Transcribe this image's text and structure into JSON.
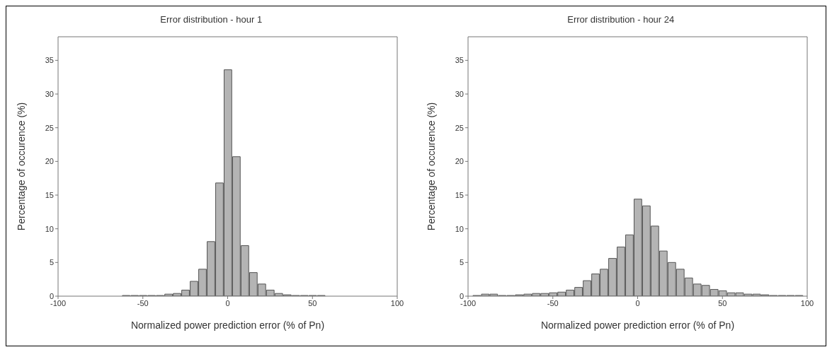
{
  "chart_data": [
    {
      "type": "histogram",
      "title": "Error distribution - hour 1",
      "xlabel": "Normalized power prediction error (% of Pn)",
      "ylabel": "Percentage of occurence (%)",
      "color": "#b4b4b4",
      "bins": [
        -97.5,
        -92.5,
        -87.5,
        -82.5,
        -77.5,
        -72.5,
        -67.5,
        -62.5,
        -57.5,
        -52.5,
        -47.5,
        -42.5,
        -37.5,
        -32.5,
        -27.5,
        -22.5,
        -17.5,
        -12.5,
        -7.5,
        -2.5,
        2.5,
        7.5,
        12.5,
        17.5,
        22.5,
        27.5,
        32.5,
        37.5,
        42.5,
        47.5,
        52.5,
        57.5,
        62.5,
        67.5,
        72.5,
        77.5,
        82.5,
        87.5,
        92.5,
        97.5
      ],
      "values": [
        0,
        0,
        0,
        0,
        0,
        0,
        0,
        0.1,
        0.1,
        0.1,
        0.1,
        0.1,
        0.3,
        0.4,
        0.9,
        2.2,
        4.0,
        8.1,
        16.8,
        33.6,
        20.7,
        7.5,
        3.5,
        1.8,
        0.9,
        0.4,
        0.2,
        0.1,
        0.1,
        0.1,
        0.1,
        0,
        0,
        0,
        0,
        0,
        0,
        0,
        0
      ],
      "xlim": [
        -100,
        100
      ],
      "xticks": [
        -100,
        -50,
        0,
        50,
        100
      ],
      "ylim": [
        0,
        38.5
      ],
      "yticks": [
        0,
        5,
        10,
        15,
        20,
        25,
        30,
        35
      ],
      "grid": false
    },
    {
      "type": "histogram",
      "title": "Error distribution - hour 24",
      "xlabel": "Normalized power prediction error (% of Pn)",
      "ylabel": "Percentage of occurence (%)",
      "color": "#b4b4b4",
      "bins": [
        -97.5,
        -92.5,
        -87.5,
        -82.5,
        -77.5,
        -72.5,
        -67.5,
        -62.5,
        -57.5,
        -52.5,
        -47.5,
        -42.5,
        -37.5,
        -32.5,
        -27.5,
        -22.5,
        -17.5,
        -12.5,
        -7.5,
        -2.5,
        2.5,
        7.5,
        12.5,
        17.5,
        22.5,
        27.5,
        32.5,
        37.5,
        42.5,
        47.5,
        52.5,
        57.5,
        62.5,
        67.5,
        72.5,
        77.5,
        82.5,
        87.5,
        92.5,
        97.5
      ],
      "values": [
        0.1,
        0.3,
        0.3,
        0.1,
        0.1,
        0.2,
        0.3,
        0.4,
        0.4,
        0.5,
        0.6,
        0.9,
        1.3,
        2.3,
        3.3,
        4.0,
        5.6,
        7.3,
        9.1,
        14.4,
        13.4,
        10.4,
        6.7,
        5.0,
        4.0,
        2.7,
        1.8,
        1.6,
        1.0,
        0.8,
        0.5,
        0.5,
        0.3,
        0.3,
        0.2,
        0.1,
        0.1,
        0.1,
        0.1
      ],
      "xlim": [
        -100,
        100
      ],
      "xticks": [
        -100,
        -50,
        0,
        50,
        100
      ],
      "ylim": [
        0,
        38.5
      ],
      "yticks": [
        0,
        5,
        10,
        15,
        20,
        25,
        30,
        35
      ],
      "grid": false
    }
  ]
}
